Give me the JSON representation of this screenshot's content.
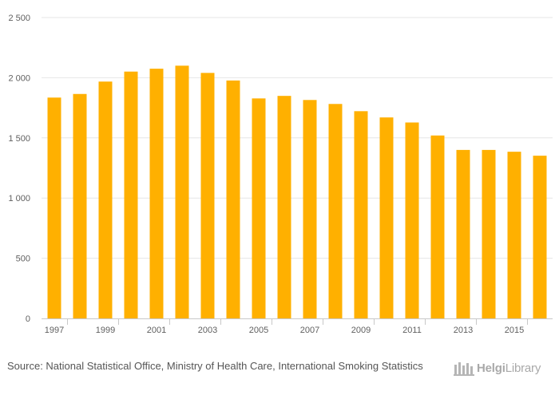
{
  "chart_data": {
    "type": "bar",
    "categories": [
      "1997",
      "1998",
      "1999",
      "2000",
      "2001",
      "2002",
      "2003",
      "2004",
      "2005",
      "2006",
      "2007",
      "2008",
      "2009",
      "2010",
      "2011",
      "2012",
      "2013",
      "2014",
      "2015",
      "2016"
    ],
    "x_tick_labels": [
      "1997",
      "1999",
      "2001",
      "2003",
      "2005",
      "2007",
      "2009",
      "2011",
      "2013",
      "2015"
    ],
    "values": [
      1835,
      1865,
      1968,
      2051,
      2075,
      2100,
      2040,
      1977,
      1828,
      1849,
      1815,
      1782,
      1722,
      1670,
      1628,
      1520,
      1400,
      1400,
      1385,
      1352
    ],
    "y_ticks": [
      0,
      500,
      1000,
      1500,
      2000,
      2500
    ],
    "y_tick_labels": [
      "0",
      "500",
      "1 000",
      "1 500",
      "2 000",
      "2 500"
    ],
    "ylim": [
      0,
      2500
    ],
    "bar_color": "#ffb000",
    "grid": true,
    "legend": "none"
  },
  "footer": {
    "source": "Source: National Statistical Office, Ministry of Health Care, International Smoking Statistics",
    "logo_part1": "Helgi",
    "logo_part2": "Library"
  }
}
